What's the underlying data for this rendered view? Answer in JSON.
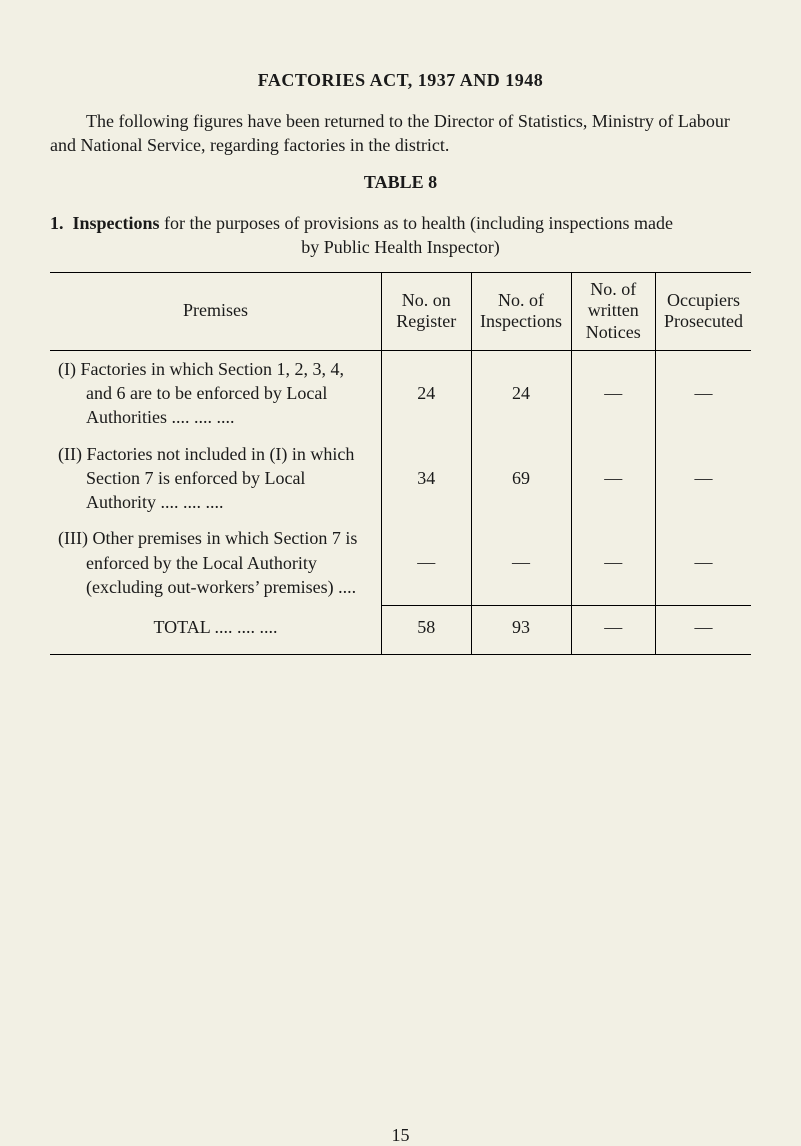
{
  "title": "FACTORIES ACT, 1937 AND 1948",
  "intro": "The following figures have been returned to the Director of Statistics, Ministry of Labour and National Service, regarding factories in the district.",
  "table_label": "TABLE 8",
  "section_number": "1.",
  "section_keyword": "Inspections",
  "section_rest_line1": " for the purposes of provisions as to health (including inspections made",
  "section_rest_line2": "by Public Health Inspector)",
  "columns": {
    "premises": "Premises",
    "register": "No. on Register",
    "inspections": "No. of Inspections",
    "notices": "No. of written Notices",
    "occupiers": "Occupiers Prosecuted"
  },
  "rows": [
    {
      "premises": "(I) Factories in which Section 1, 2, 3, 4, and 6 are to be enforced by Local Authorities     ....        ....        ....",
      "register": "24",
      "inspections": "24",
      "notices": "—",
      "occupiers": "—"
    },
    {
      "premises": "(II) Factories not included in (I) in which Section 7 is enforced by Local Authority  ....        ....        ....",
      "register": "34",
      "inspections": "69",
      "notices": "—",
      "occupiers": "—"
    },
    {
      "premises": "(III) Other premises in which Section 7 is enforced by the Local Authority (excluding out-workers’ premises)    ....",
      "register": "—",
      "inspections": "—",
      "notices": "—",
      "occupiers": "—"
    }
  ],
  "total": {
    "label": "TOTAL     ....        ....        ....",
    "register": "58",
    "inspections": "93",
    "notices": "—",
    "occupiers": "—"
  },
  "page_number": "15"
}
